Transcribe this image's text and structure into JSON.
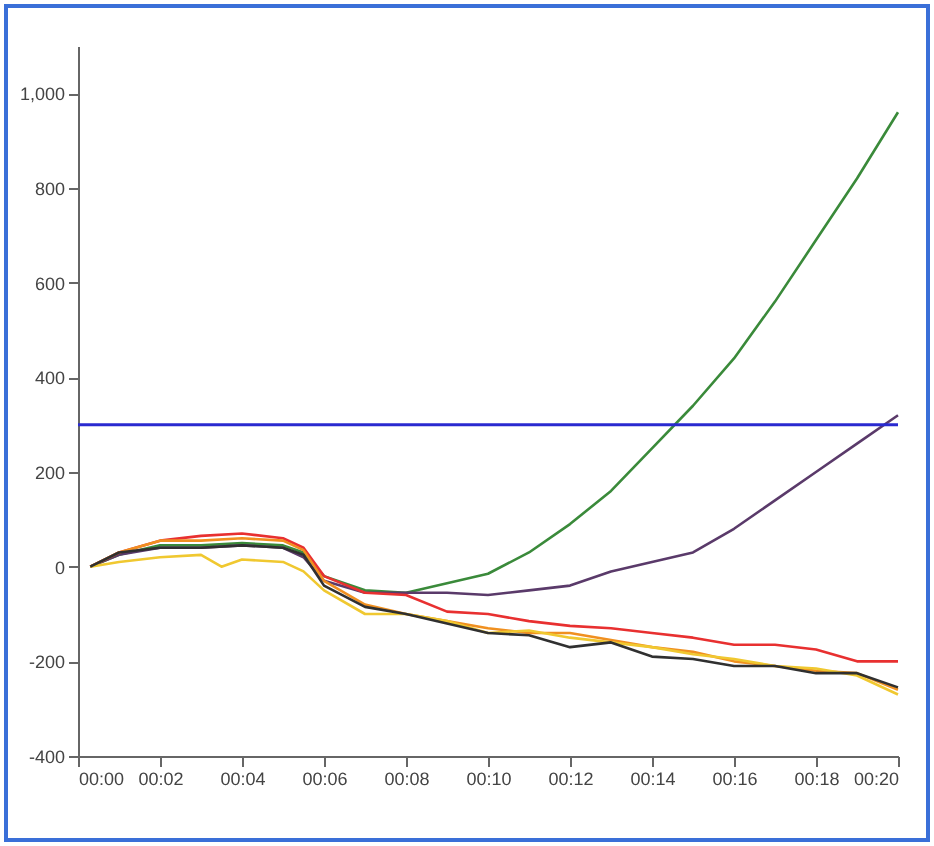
{
  "chart_data": {
    "type": "line",
    "x": [
      0.3,
      1,
      2,
      3,
      4,
      5,
      5.5,
      6,
      7,
      8,
      9,
      10,
      11,
      12,
      13,
      14,
      15,
      16,
      17,
      18,
      19,
      20
    ],
    "series": [
      {
        "color": "#3a8a3a",
        "values": [
          0,
          25,
          45,
          45,
          50,
          45,
          30,
          -20,
          -50,
          -55,
          -35,
          -15,
          30,
          90,
          160,
          250,
          340,
          440,
          560,
          690,
          820,
          960
        ]
      },
      {
        "color": "#5a3a6a",
        "values": [
          0,
          25,
          40,
          40,
          45,
          40,
          20,
          -30,
          -55,
          -55,
          -55,
          -60,
          -50,
          -40,
          -10,
          10,
          30,
          80,
          140,
          200,
          260,
          320
        ]
      },
      {
        "color": "#e83030",
        "values": [
          0,
          30,
          55,
          65,
          70,
          60,
          40,
          -20,
          -55,
          -60,
          -95,
          -100,
          -115,
          -125,
          -130,
          -140,
          -150,
          -165,
          -165,
          -175,
          -200,
          -200
        ]
      },
      {
        "color": "#f09020",
        "values": [
          0,
          30,
          55,
          55,
          60,
          55,
          35,
          -30,
          -80,
          -100,
          -115,
          -130,
          -140,
          -140,
          -155,
          -170,
          -180,
          -200,
          -210,
          -220,
          -225,
          -260
        ]
      },
      {
        "color": "#f0c830",
        "x": [
          0.3,
          1,
          2,
          3,
          3.5,
          4,
          5,
          5.5,
          6,
          7,
          8,
          9,
          10,
          11,
          12,
          13,
          14,
          15,
          16,
          17,
          18,
          19,
          20
        ],
        "values": [
          0,
          10,
          20,
          25,
          0,
          15,
          10,
          -10,
          -50,
          -100,
          -100,
          -115,
          -140,
          -135,
          -150,
          -160,
          -170,
          -185,
          -195,
          -210,
          -215,
          -230,
          -270
        ]
      },
      {
        "color": "#303030",
        "values": [
          0,
          30,
          40,
          40,
          45,
          40,
          25,
          -40,
          -85,
          -100,
          -120,
          -140,
          -145,
          -170,
          -160,
          -190,
          -195,
          -210,
          -210,
          -225,
          -225,
          -255
        ]
      }
    ],
    "xlim": [
      0,
      20
    ],
    "xticks": [
      {
        "value": 0,
        "label": "00:00"
      },
      {
        "value": 2,
        "label": "00:02"
      },
      {
        "value": 4,
        "label": "00:04"
      },
      {
        "value": 6,
        "label": "00:06"
      },
      {
        "value": 8,
        "label": "00:08"
      },
      {
        "value": 10,
        "label": "00:10"
      },
      {
        "value": 12,
        "label": "00:12"
      },
      {
        "value": 14,
        "label": "00:14"
      },
      {
        "value": 16,
        "label": "00:16"
      },
      {
        "value": 18,
        "label": "00:18"
      },
      {
        "value": 20,
        "label": "00:20"
      }
    ],
    "ylim": [
      -400,
      1100
    ],
    "yticks": [
      -400,
      -200,
      0,
      200,
      400,
      600,
      800,
      {
        "value": 1000,
        "label": "1,000"
      }
    ],
    "ref_lines": [
      {
        "axis": "y",
        "value": 300,
        "color": "#2a2ad0"
      }
    ]
  }
}
